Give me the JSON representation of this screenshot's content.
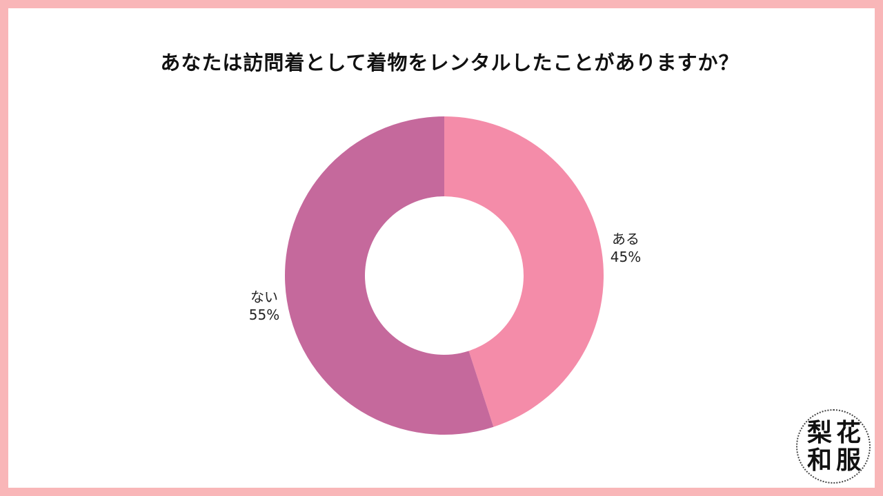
{
  "chart_data": {
    "type": "pie",
    "title": "あなたは訪問着として着物をレンタルしたことがありますか？",
    "slices": [
      {
        "label": "ある",
        "value": 45,
        "value_label": "45%",
        "color": "#f48ca9"
      },
      {
        "label": "ない",
        "value": 55,
        "value_label": "55%",
        "color": "#c5699c"
      }
    ],
    "donut": true,
    "start": "top",
    "direction": "clockwise"
  },
  "logo": {
    "text": "梨花和服",
    "chars": [
      "梨",
      "花",
      "和",
      "服"
    ]
  }
}
